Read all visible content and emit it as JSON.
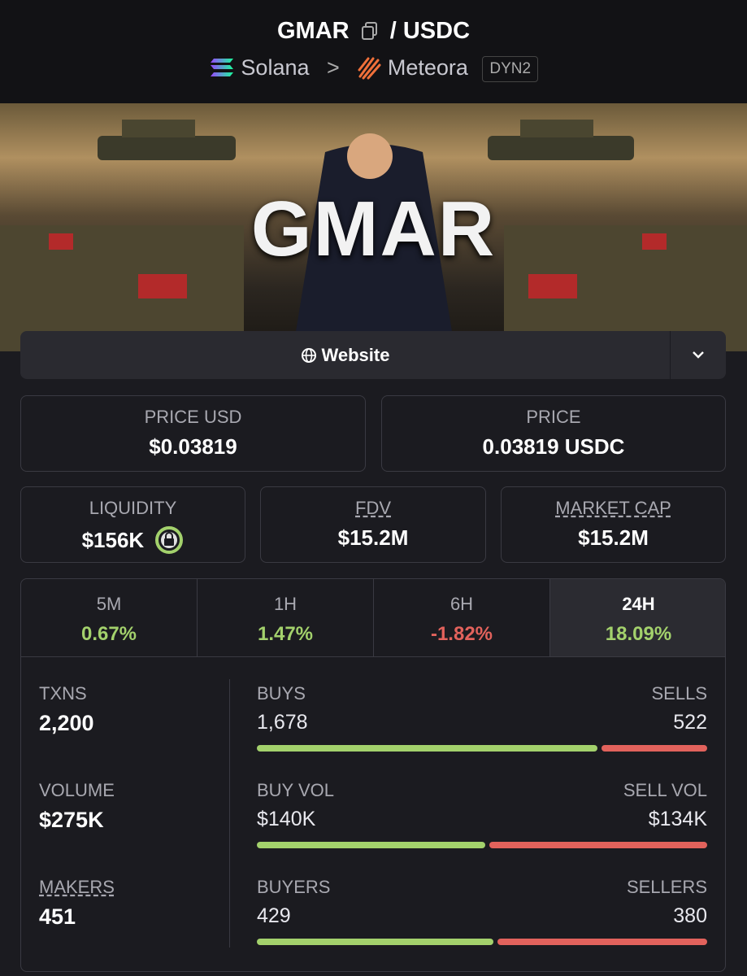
{
  "header": {
    "token": "GMAR",
    "separator": "/",
    "quote": "USDC",
    "chain": "Solana",
    "dex": "Meteora",
    "pool_type": "DYN2"
  },
  "banner": {
    "text": "GMAR"
  },
  "website_button": "Website",
  "prices": [
    {
      "label": "PRICE USD",
      "value": "$0.03819"
    },
    {
      "label": "PRICE",
      "value": "0.03819 USDC"
    }
  ],
  "metrics": [
    {
      "label": "LIQUIDITY",
      "value": "$156K"
    },
    {
      "label": "FDV",
      "value": "$15.2M"
    },
    {
      "label": "MARKET CAP",
      "value": "$15.2M"
    }
  ],
  "changes": [
    {
      "period": "5M",
      "value": "0.67%"
    },
    {
      "period": "1H",
      "value": "1.47%"
    },
    {
      "period": "6H",
      "value": "-1.82%"
    },
    {
      "period": "24H",
      "value": "18.09%"
    }
  ],
  "stats": [
    {
      "label": "TXNS",
      "value": "2,200"
    },
    {
      "label": "VOLUME",
      "value": "$275K"
    },
    {
      "label": "MAKERS",
      "value": "451"
    }
  ],
  "splits": [
    {
      "left_label": "BUYS",
      "left": {
        "value": 1678,
        "label": "1,678"
      },
      "right_label": "SELLS",
      "right": {
        "value": 522,
        "label": "522"
      }
    },
    {
      "left_label": "BUY VOL",
      "left": {
        "value": 140000,
        "label": "$140K"
      },
      "right_label": "SELL VOL",
      "right": {
        "value": 134000,
        "label": "$134K"
      }
    },
    {
      "left_label": "BUYERS",
      "left": {
        "value": 429,
        "label": "429"
      },
      "right_label": "SELLERS",
      "right": {
        "value": 380,
        "label": "380"
      }
    }
  ]
}
